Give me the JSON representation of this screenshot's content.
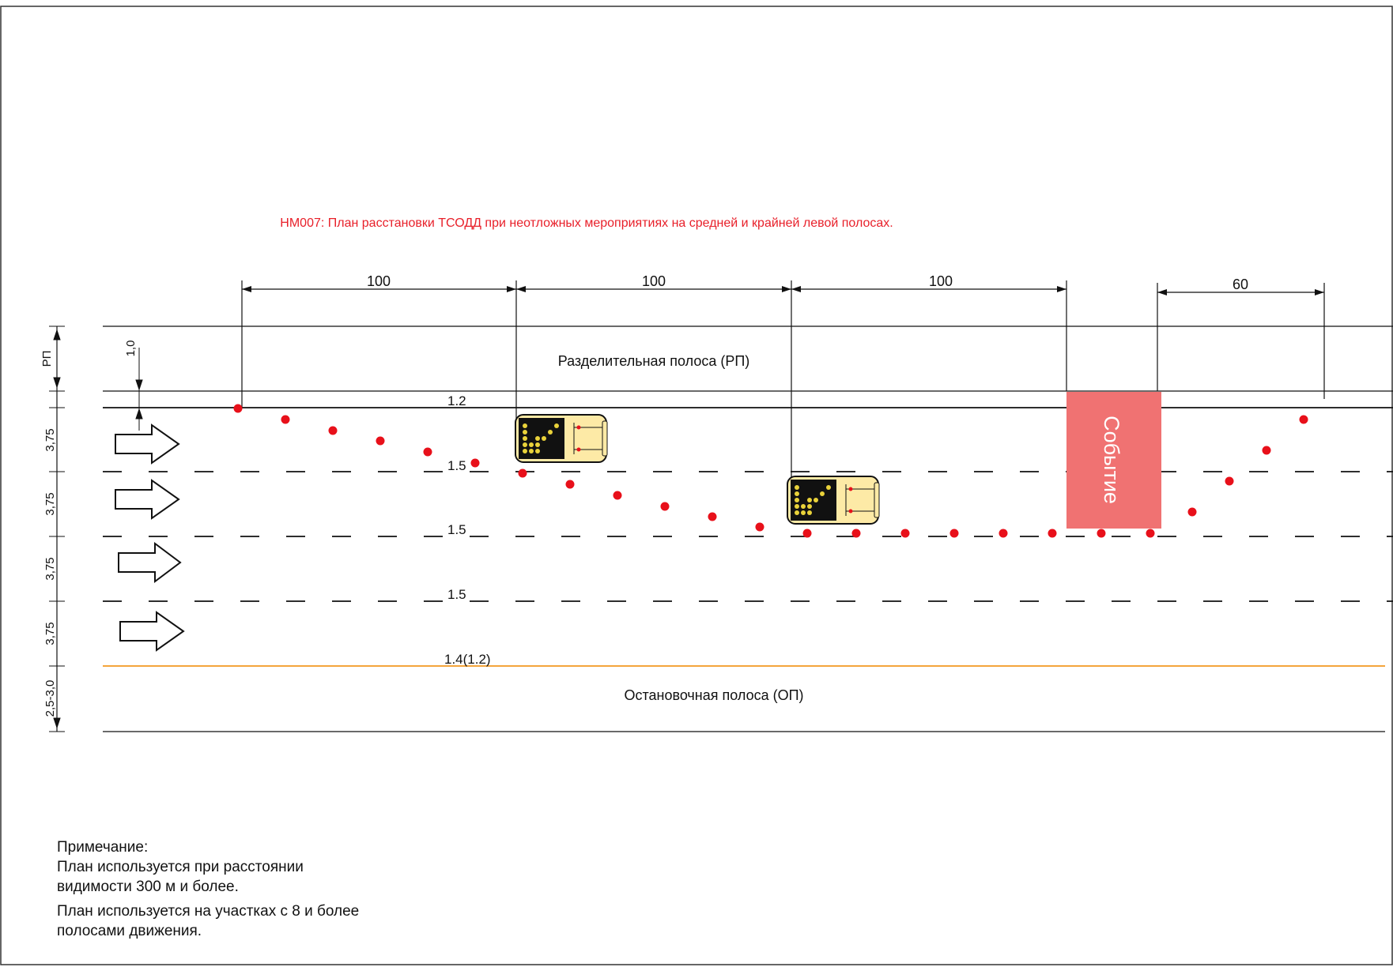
{
  "title": "НМ007:  План расстановки ТСОДД при неотложных мероприятиях на средней и крайней левой полосах.",
  "dimensions": {
    "spacing": [
      "100",
      "100",
      "100"
    ],
    "taper": "60"
  },
  "median_label": "Разделительная полоса (РП)",
  "shoulder_label": "Остановочная полоса (ОП)",
  "event_label": "Событие",
  "markings": {
    "edge_top": "1.2",
    "lane_1": "1.5",
    "lane_2": "1.5",
    "lane_3": "1.5",
    "edge_bottom": "1.4(1.2)"
  },
  "vertical_dims": {
    "median": "РП",
    "offset": "1,0",
    "lane_1": "3,75",
    "lane_2": "3,75",
    "lane_3": "3,75",
    "lane_4": "3,75",
    "shoulder": "2,5-3,0"
  },
  "notes": {
    "heading": "Примечание:",
    "line1": "План используется при расстоянии",
    "line2": "видимости  300 м  и более.",
    "line3": "План используется на участках с 8 и более",
    "line4": "полосами движения."
  },
  "colors": {
    "title": "#e8202a",
    "cone": "#e8101a",
    "event_fill": "#f07272",
    "event_text": "#ffffff",
    "vehicle_body": "#fdeaa6",
    "vehicle_panel": "#111111",
    "vehicle_lights": "#e9d23a",
    "edge_line_bottom": "#f4a53c",
    "lines": "#111111"
  },
  "icons": {
    "traffic_direction": "arrow-right-icon",
    "cone": "cone-icon",
    "vehicle": "arrow-board-vehicle-icon"
  }
}
